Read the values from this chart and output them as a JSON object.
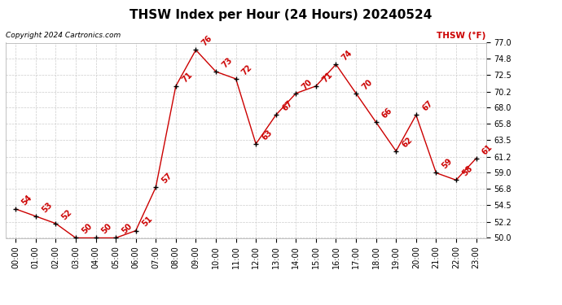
{
  "title": "THSW Index per Hour (24 Hours) 20240524",
  "copyright": "Copyright 2024 Cartronics.com",
  "legend_label": "THSW (°F)",
  "hours": [
    "00:00",
    "01:00",
    "02:00",
    "03:00",
    "04:00",
    "05:00",
    "06:00",
    "07:00",
    "08:00",
    "09:00",
    "10:00",
    "11:00",
    "12:00",
    "13:00",
    "14:00",
    "15:00",
    "16:00",
    "17:00",
    "18:00",
    "19:00",
    "20:00",
    "21:00",
    "22:00",
    "23:00"
  ],
  "values": [
    54,
    53,
    52,
    50,
    50,
    50,
    51,
    57,
    71,
    76,
    73,
    72,
    63,
    67,
    70,
    71,
    74,
    70,
    66,
    62,
    67,
    59,
    58,
    61
  ],
  "line_color": "#cc0000",
  "marker_color": "#000000",
  "grid_color": "#cccccc",
  "background_color": "#ffffff",
  "ylim": [
    50.0,
    77.0
  ],
  "yticks": [
    50.0,
    52.2,
    54.5,
    56.8,
    59.0,
    61.2,
    63.5,
    65.8,
    68.0,
    70.2,
    72.5,
    74.8,
    77.0
  ],
  "title_fontsize": 11,
  "label_fontsize": 7,
  "annotation_fontsize": 7,
  "copyright_fontsize": 6.5,
  "legend_fontsize": 7.5
}
